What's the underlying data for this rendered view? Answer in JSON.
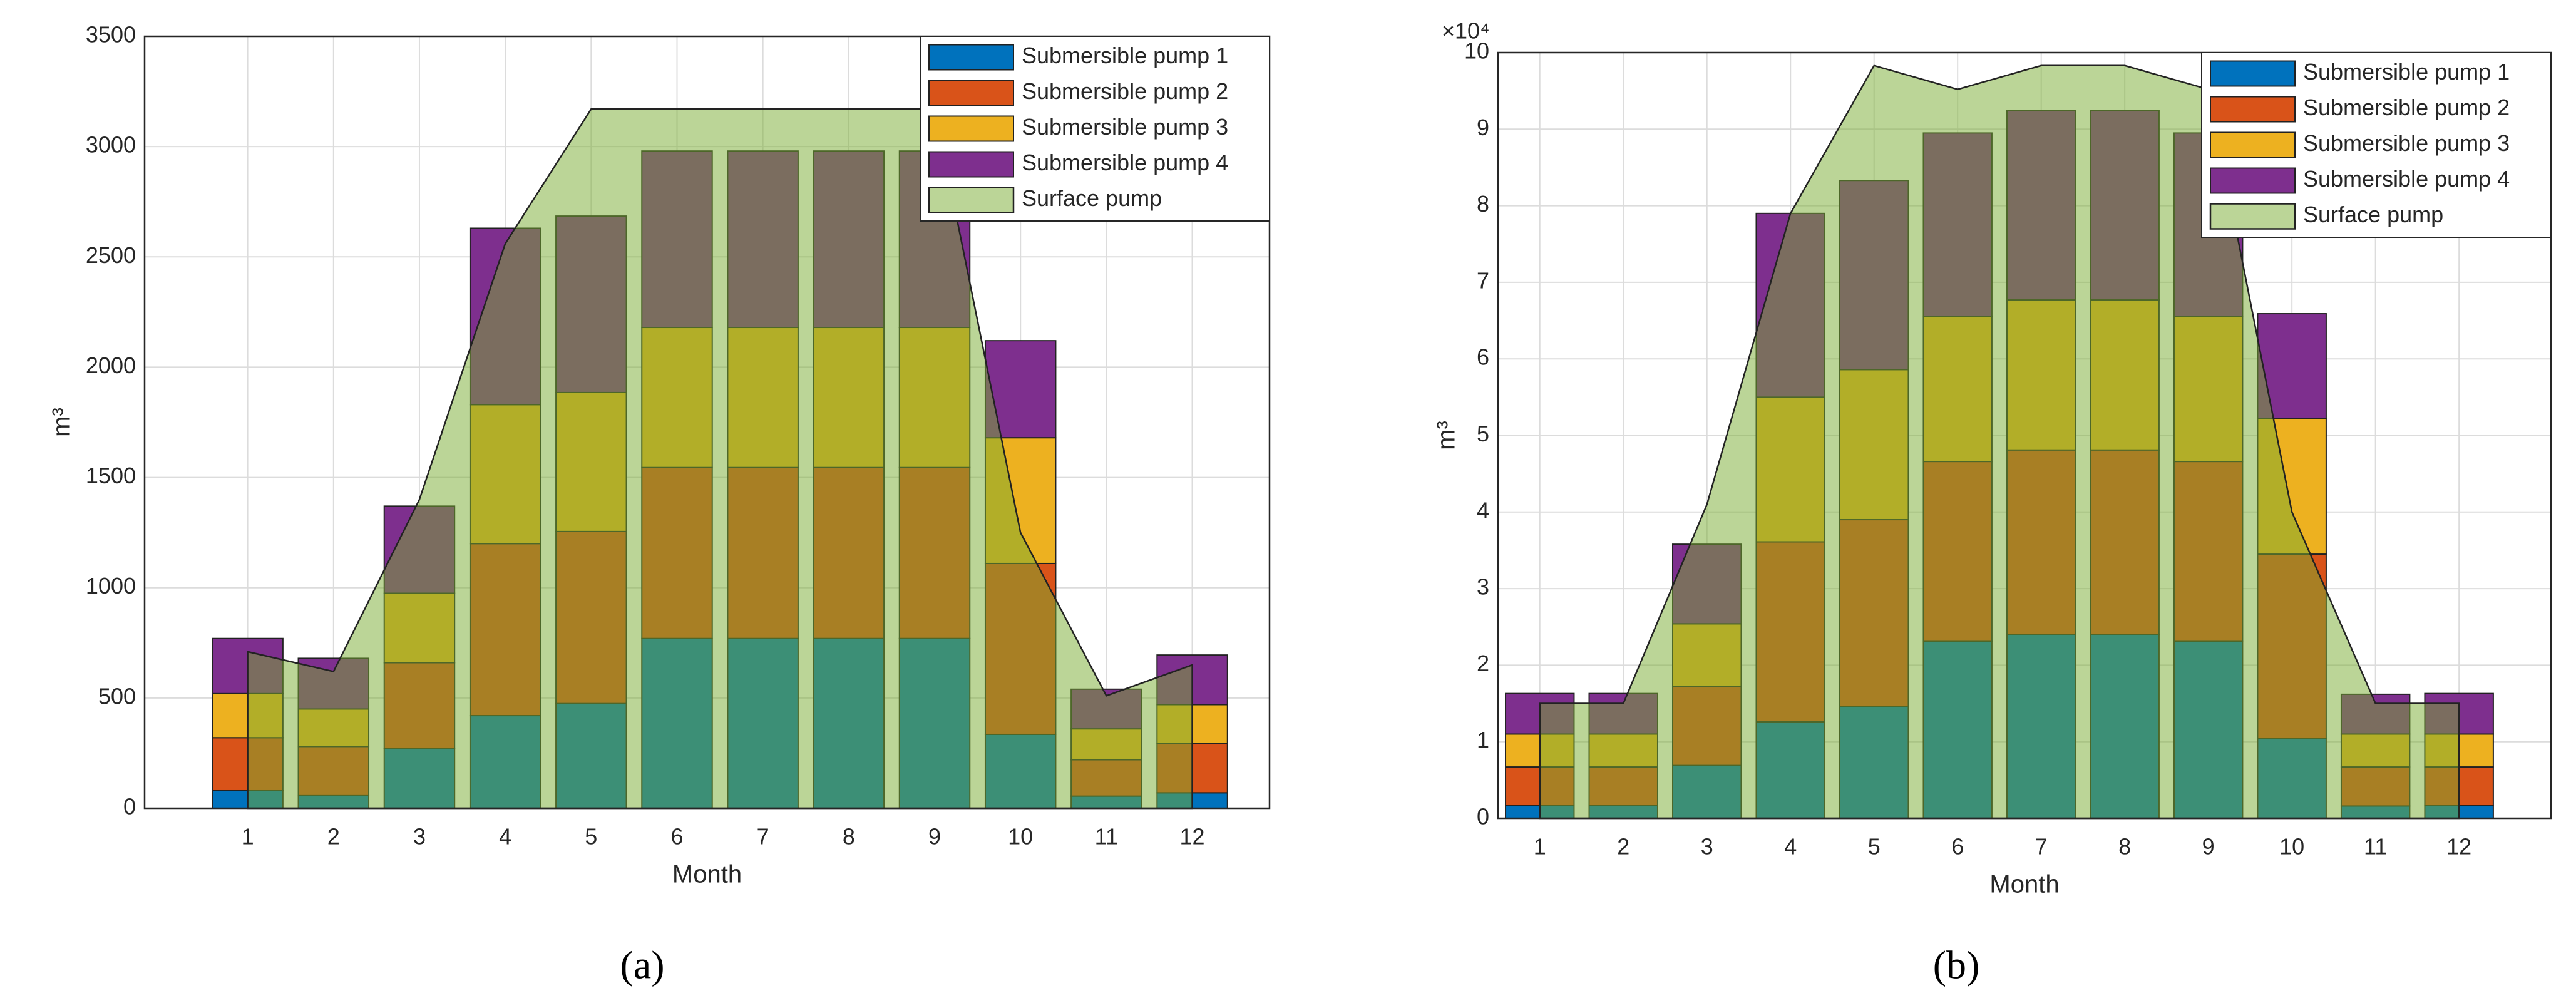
{
  "chart_data": [
    {
      "type": "bar",
      "caption": "(a)",
      "xlabel": "Month",
      "ylabel": "m³",
      "x": [
        1,
        2,
        3,
        4,
        5,
        6,
        7,
        8,
        9,
        10,
        11,
        12
      ],
      "xlim": [
        -0.2,
        12.9
      ],
      "xticks": [
        1,
        2,
        3,
        4,
        5,
        6,
        7,
        8,
        9,
        10,
        11,
        12
      ],
      "ylim": [
        0,
        3500
      ],
      "yticks": [
        0,
        500,
        1000,
        1500,
        2000,
        2500,
        3000,
        3500
      ],
      "grid": true,
      "legend": "upper right",
      "series": [
        {
          "name": "Submersible pump 1",
          "color": "#0072bd",
          "values": [
            80,
            60,
            270,
            420,
            475,
            770,
            770,
            770,
            770,
            335,
            55,
            70
          ]
        },
        {
          "name": "Submersible pump 2",
          "color": "#d95319",
          "values": [
            240,
            220,
            390,
            780,
            780,
            775,
            775,
            775,
            775,
            775,
            165,
            225
          ]
        },
        {
          "name": "Submersible pump 3",
          "color": "#edb120",
          "values": [
            200,
            170,
            315,
            630,
            630,
            635,
            635,
            635,
            635,
            570,
            140,
            175
          ]
        },
        {
          "name": "Submersible pump 4",
          "color": "#7e2f8e",
          "values": [
            250,
            230,
            395,
            800,
            800,
            800,
            800,
            800,
            800,
            440,
            180,
            225
          ]
        },
        {
          "name": "Surface pump",
          "color": "#77ac30",
          "plot": "area",
          "values": [
            710,
            620,
            1400,
            2560,
            3170,
            3170,
            3170,
            3170,
            3170,
            1250,
            510,
            650
          ]
        }
      ]
    },
    {
      "type": "bar",
      "caption": "(b)",
      "xlabel": "Month",
      "ylabel": "m³",
      "annotation": "×10⁴",
      "x": [
        1,
        2,
        3,
        4,
        5,
        6,
        7,
        8,
        9,
        10,
        11,
        12
      ],
      "xlim": [
        0.5,
        13.1
      ],
      "xticks": [
        1,
        2,
        3,
        4,
        5,
        6,
        7,
        8,
        9,
        10,
        11,
        12
      ],
      "ylim": [
        0,
        100000
      ],
      "yticks": [
        {
          "value": 0,
          "label": "0"
        },
        {
          "value": 10000,
          "label": "1"
        },
        {
          "value": 20000,
          "label": "2"
        },
        {
          "value": 30000,
          "label": "3"
        },
        {
          "value": 40000,
          "label": "4"
        },
        {
          "value": 50000,
          "label": "5"
        },
        {
          "value": 60000,
          "label": "6"
        },
        {
          "value": 70000,
          "label": "7"
        },
        {
          "value": 80000,
          "label": "8"
        },
        {
          "value": 90000,
          "label": "9"
        },
        {
          "value": 100000,
          "label": "10"
        }
      ],
      "grid": true,
      "legend": "upper right",
      "series": [
        {
          "name": "Submersible pump 1",
          "color": "#0072bd",
          "values": [
            1700,
            1700,
            6900,
            12600,
            14600,
            23100,
            24000,
            24000,
            23100,
            10400,
            1600,
            1700
          ]
        },
        {
          "name": "Submersible pump 2",
          "color": "#d95319",
          "values": [
            5000,
            5000,
            10300,
            23500,
            24400,
            23500,
            24100,
            24100,
            23500,
            24100,
            5100,
            5000
          ]
        },
        {
          "name": "Submersible pump 3",
          "color": "#edb120",
          "values": [
            4300,
            4300,
            8200,
            18900,
            19600,
            18900,
            19600,
            19600,
            18900,
            17700,
            4300,
            4300
          ]
        },
        {
          "name": "Submersible pump 4",
          "color": "#7e2f8e",
          "values": [
            5300,
            5300,
            10400,
            24000,
            24700,
            24000,
            24700,
            24700,
            24000,
            13700,
            5200,
            5300
          ]
        },
        {
          "name": "Surface pump",
          "color": "#77ac30",
          "plot": "area",
          "values": [
            15000,
            15000,
            41000,
            79000,
            98300,
            95200,
            98300,
            98300,
            95200,
            40000,
            15000,
            15000
          ]
        }
      ]
    }
  ]
}
